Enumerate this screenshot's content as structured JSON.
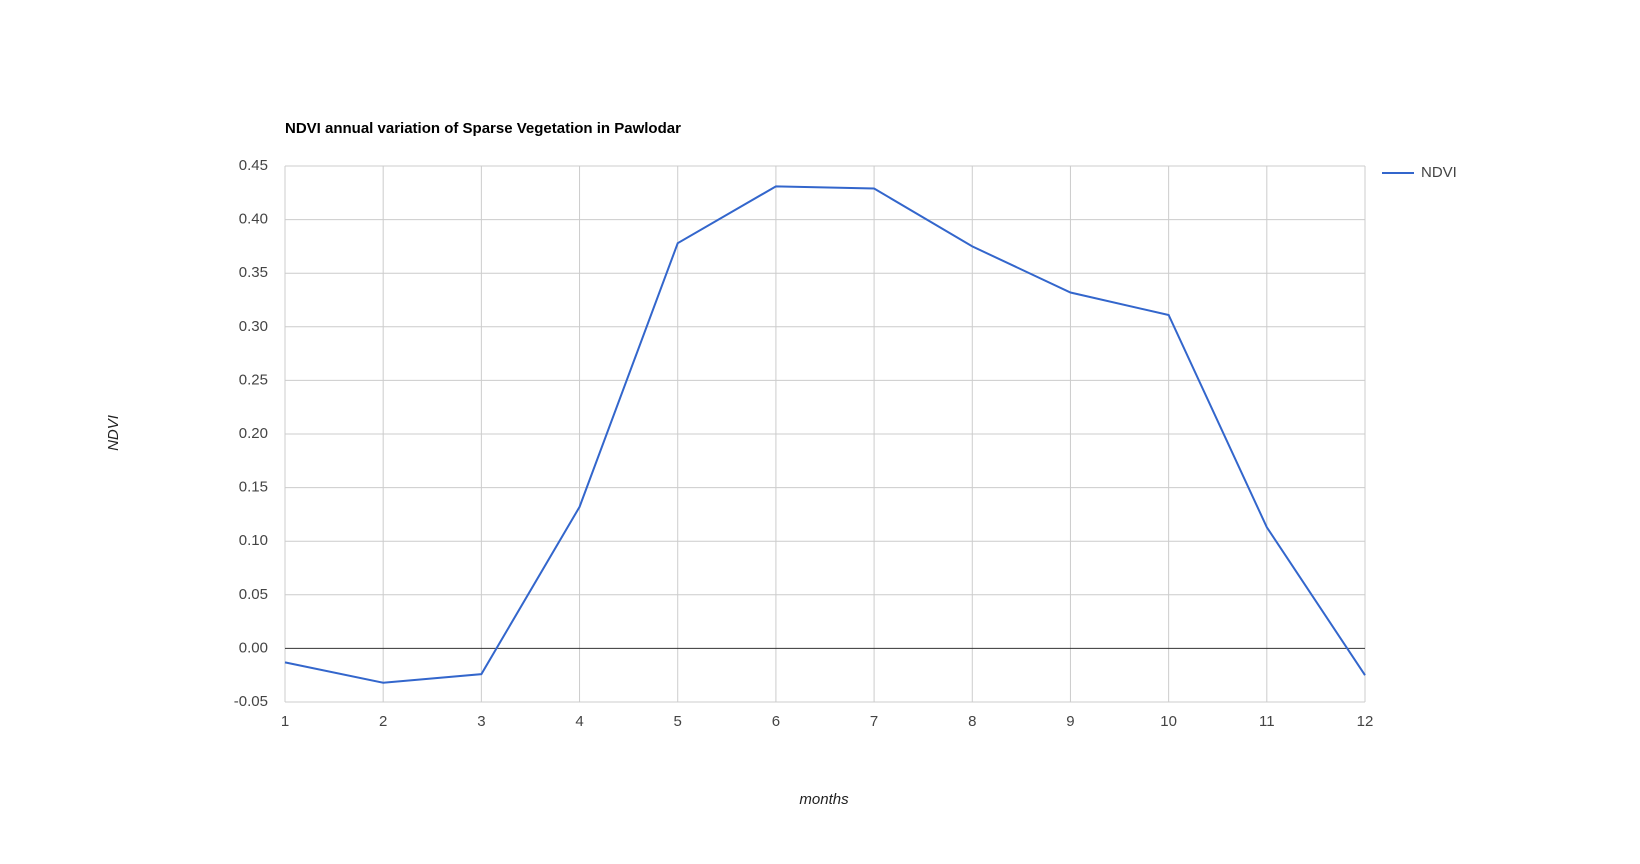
{
  "chart_data": {
    "type": "line",
    "title": "NDVI annual variation of Sparse Vegetation in Pawlodar",
    "x_label": "months",
    "y_label": "NDVI",
    "x": [
      1,
      2,
      3,
      4,
      5,
      6,
      7,
      8,
      9,
      10,
      11,
      12
    ],
    "series": [
      {
        "name": "NDVI",
        "color": "#3366cc",
        "values": [
          -0.013,
          -0.032,
          -0.024,
          0.132,
          0.378,
          0.431,
          0.429,
          0.375,
          0.332,
          0.311,
          0.113,
          -0.025
        ]
      }
    ],
    "xlim": [
      1,
      12
    ],
    "xticks": [
      1,
      2,
      3,
      4,
      5,
      6,
      7,
      8,
      9,
      10,
      11,
      12
    ],
    "ylim": [
      -0.05,
      0.45
    ],
    "yticks": [
      -0.05,
      {
        "value": 0,
        "label": "0.00"
      },
      0.05,
      {
        "value": 0.1,
        "label": "0.10"
      },
      0.15,
      {
        "value": 0.2,
        "label": "0.20"
      },
      0.25,
      {
        "value": 0.3,
        "label": "0.30"
      },
      0.35,
      {
        "value": 0.4,
        "label": "0.40"
      },
      0.45
    ],
    "grid": true,
    "legend": "right"
  }
}
